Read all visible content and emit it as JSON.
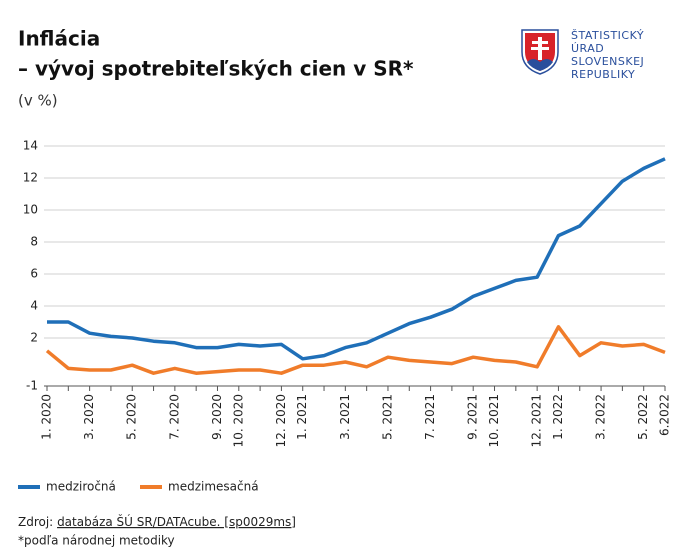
{
  "chart_data": {
    "type": "line",
    "title": "Inflácia",
    "subtitle": "– vývoj spotrebiteľských cien v SR*",
    "unit_label": "(v %)",
    "logo": [
      "ŠTATISTICKÝ",
      "ÚRAD",
      "SLOVENSKEJ",
      "REPUBLIKY"
    ],
    "categories": [
      "1. 2020",
      null,
      "3. 2020",
      null,
      "5. 2020",
      null,
      "7. 2020",
      null,
      "9. 2020",
      "10. 2020",
      null,
      "12. 2020",
      "1. 2021",
      null,
      "3. 2021",
      null,
      "5. 2021",
      null,
      "7. 2021",
      null,
      "9. 2021",
      "10. 2021",
      null,
      "12. 2021",
      "1. 2022",
      null,
      "3. 2022",
      null,
      "5. 2022",
      "6.2022"
    ],
    "series": [
      {
        "name": "medziročná",
        "color": "#1f6fb8",
        "values": [
          3.0,
          3.0,
          2.3,
          2.1,
          2.0,
          1.8,
          1.7,
          1.4,
          1.4,
          1.6,
          1.5,
          1.6,
          0.7,
          0.9,
          1.4,
          1.7,
          2.3,
          2.9,
          3.3,
          3.8,
          4.6,
          5.1,
          5.6,
          5.8,
          8.4,
          9.0,
          10.4,
          11.8,
          12.6,
          13.2
        ]
      },
      {
        "name": "medzimesačná",
        "color": "#f07c2a",
        "values": [
          1.2,
          0.1,
          0.0,
          0.0,
          0.3,
          -0.2,
          0.1,
          -0.2,
          -0.1,
          0.0,
          0.0,
          -0.2,
          0.3,
          0.3,
          0.5,
          0.2,
          0.8,
          0.6,
          0.5,
          0.4,
          0.8,
          0.6,
          0.5,
          0.2,
          2.7,
          0.9,
          1.7,
          1.5,
          1.6,
          1.1
        ]
      }
    ],
    "ylim": [
      -1,
      14
    ],
    "yticks": [
      -1,
      2,
      4,
      6,
      8,
      10,
      12,
      14
    ],
    "grid": true,
    "legend": "bottom",
    "source": {
      "prefix": "Zdroj:",
      "link": "databáza ŠÚ SR/DATAcube. [sp0029ms]"
    },
    "footnote": "*podľa národnej metodiky"
  }
}
